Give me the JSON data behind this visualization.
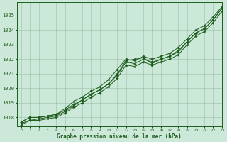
{
  "title": "Graphe pression niveau de la mer (hPa)",
  "bg_color": "#cce8d8",
  "plot_bg_color": "#cce8d8",
  "line_color": "#1e5c1e",
  "grid_color": "#9abfaa",
  "axis_color": "#1e5c1e",
  "text_color": "#1e5c1e",
  "xlim": [
    -0.5,
    23
  ],
  "ylim": [
    1017.4,
    1025.9
  ],
  "yticks": [
    1018,
    1019,
    1020,
    1021,
    1022,
    1023,
    1024,
    1025
  ],
  "xticks": [
    0,
    1,
    2,
    3,
    4,
    5,
    6,
    7,
    8,
    9,
    10,
    11,
    12,
    13,
    14,
    15,
    16,
    17,
    18,
    19,
    20,
    21,
    22,
    23
  ],
  "series": [
    [
      1017.7,
      1018.0,
      1018.0,
      1018.1,
      1018.2,
      1018.5,
      1018.9,
      1019.2,
      1019.6,
      1019.9,
      1020.3,
      1021.0,
      1021.9,
      1022.0,
      1022.1,
      1021.7,
      1022.0,
      1022.2,
      1022.5,
      1023.2,
      1023.8,
      1024.1,
      1024.7,
      1025.5
    ],
    [
      1017.7,
      1018.0,
      1018.0,
      1018.1,
      1018.2,
      1018.6,
      1019.1,
      1019.4,
      1019.8,
      1020.1,
      1020.6,
      1021.3,
      1022.0,
      1021.9,
      1022.2,
      1022.0,
      1022.2,
      1022.4,
      1022.8,
      1023.4,
      1024.0,
      1024.3,
      1024.9,
      1025.6
    ],
    [
      1017.6,
      1017.8,
      1017.9,
      1018.0,
      1018.1,
      1018.4,
      1018.8,
      1019.2,
      1019.6,
      1019.9,
      1020.3,
      1020.9,
      1021.8,
      1021.7,
      1022.0,
      1021.8,
      1022.0,
      1022.2,
      1022.6,
      1023.2,
      1023.8,
      1024.1,
      1024.7,
      1025.5
    ],
    [
      1017.5,
      1017.8,
      1017.8,
      1017.9,
      1018.0,
      1018.3,
      1018.7,
      1019.0,
      1019.4,
      1019.7,
      1020.1,
      1020.7,
      1021.6,
      1021.5,
      1021.8,
      1021.6,
      1021.8,
      1022.0,
      1022.3,
      1023.0,
      1023.6,
      1023.9,
      1024.5,
      1025.3
    ]
  ]
}
